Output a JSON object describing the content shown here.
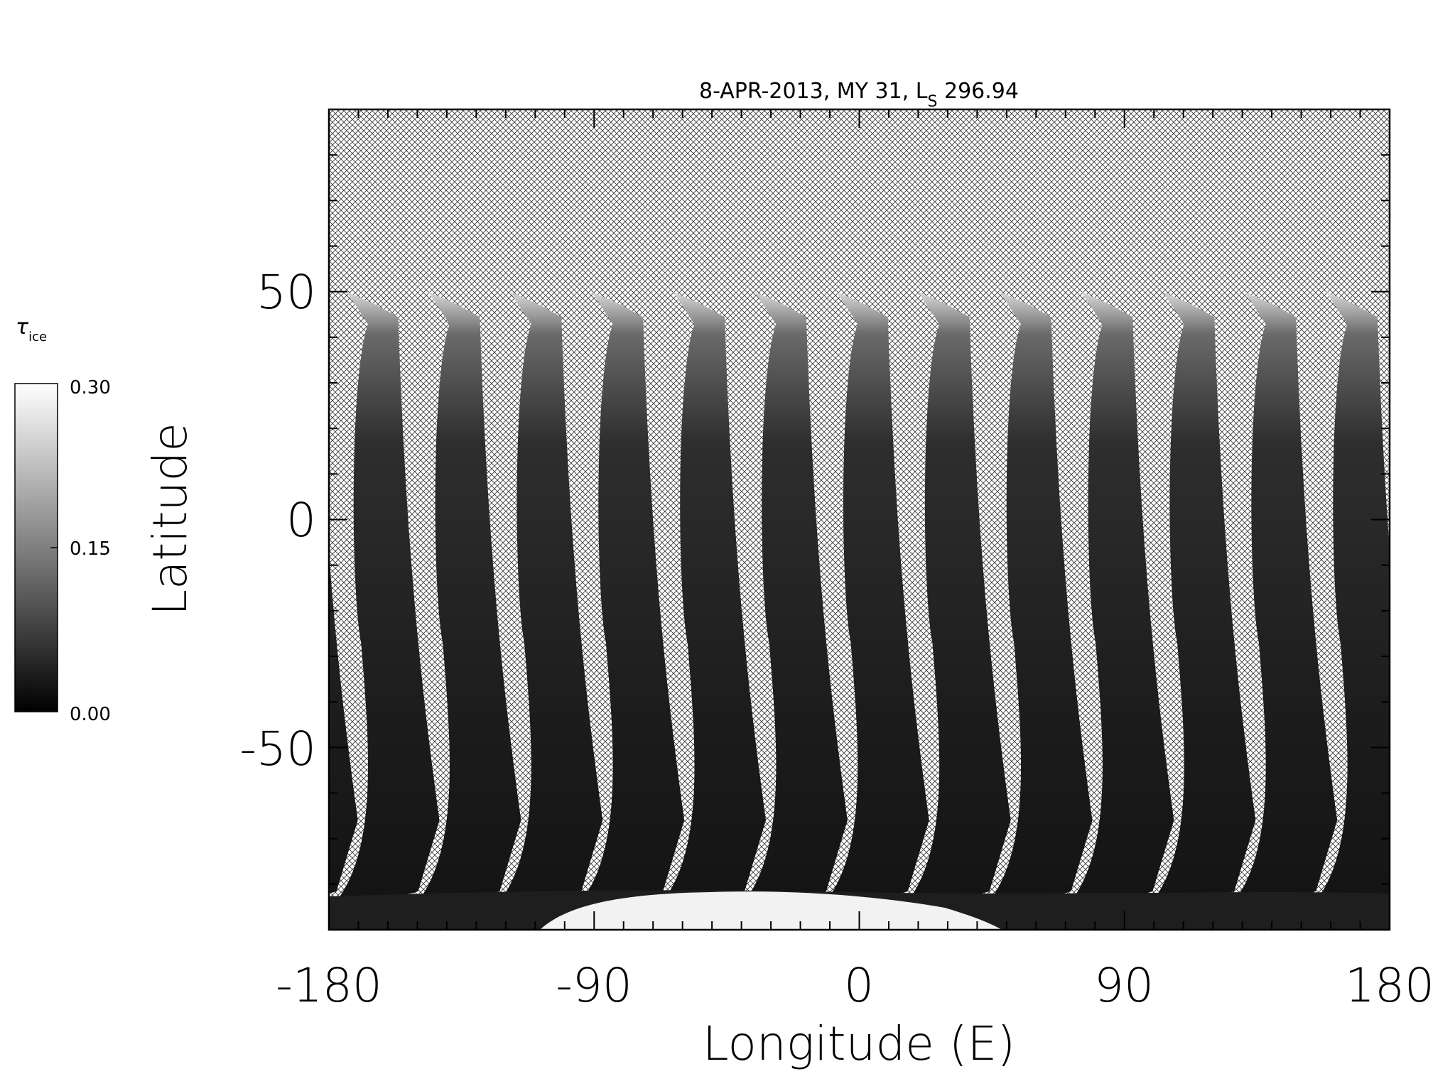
{
  "chart_data": {
    "type": "heatmap",
    "title": "8-APR-2013, MY 31,  L",
    "title_sub": "S",
    "title_suffix": " 296.94",
    "xlabel": "Longitude (E)",
    "ylabel": "Latitude",
    "xlim": [
      -180,
      180
    ],
    "ylim": [
      -90,
      90
    ],
    "x_ticks": [
      "-180",
      "-90",
      "0",
      "90",
      "180"
    ],
    "x_tick_values": [
      -180,
      -90,
      0,
      90,
      180
    ],
    "y_ticks": [
      "50",
      "0",
      "-50"
    ],
    "y_tick_values": [
      50,
      0,
      -50
    ],
    "colorbar": {
      "symbol": "τ",
      "subscript": "ice",
      "min": 0.0,
      "max": 0.3,
      "ticks": [
        "0.30",
        "0.15",
        "0.00"
      ],
      "tick_values": [
        0.3,
        0.15,
        0.0
      ],
      "colormap": "grayscale"
    },
    "no_data_pattern": "crosshatch",
    "swaths": {
      "count": 13,
      "start_longitude": -174,
      "spacing_degrees": 27.7,
      "top_latitude": 50,
      "bottom_latitude": -80
    }
  }
}
